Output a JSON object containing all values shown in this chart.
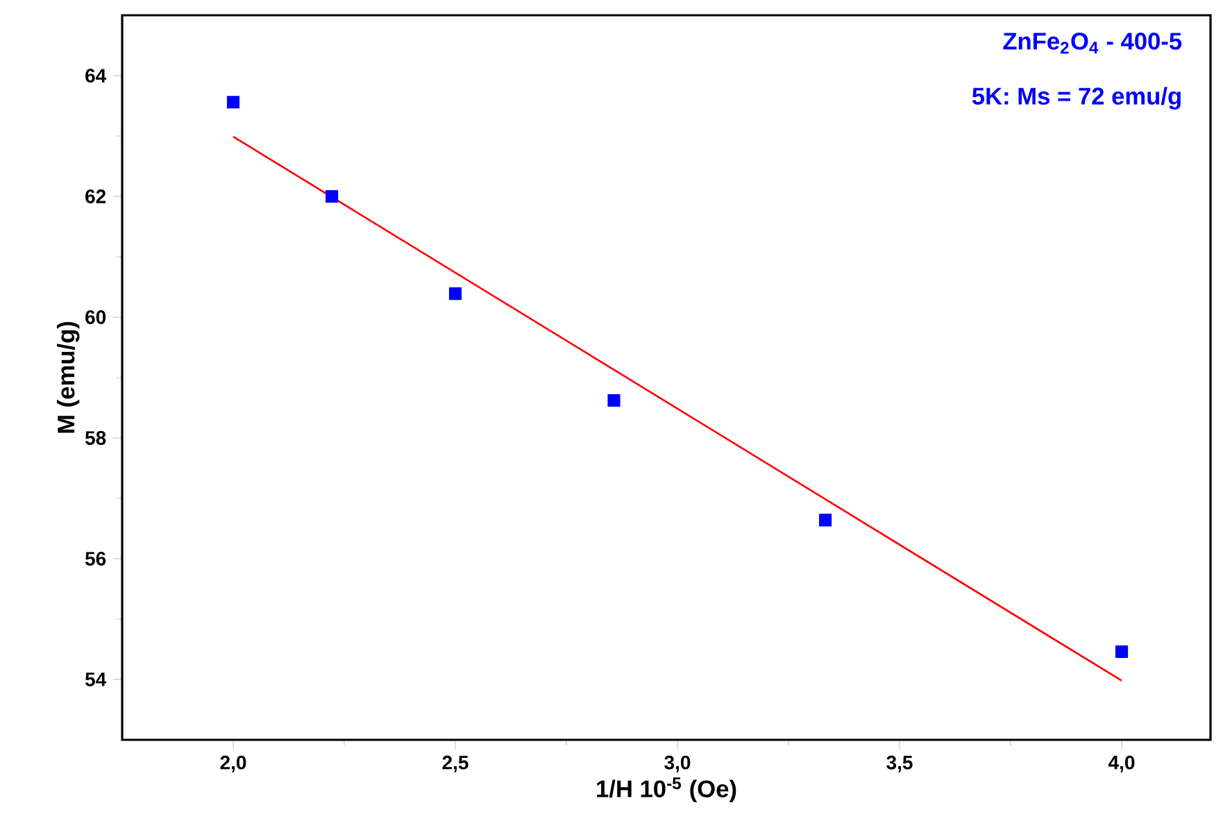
{
  "chart_data": {
    "type": "scatter",
    "xlabel": "1/H 10$^{-5}$ (Oe)",
    "ylabel": "M (emu/g)",
    "annotations": [
      "ZnFe$_{2}$O$_{4}$ - 400-5",
      "5K: Ms = 72 emu/g"
    ],
    "xlim": [
      1.75,
      4.2
    ],
    "ylim": [
      53,
      65
    ],
    "xticks": [
      {
        "value": 2.0,
        "label": "2,0"
      },
      {
        "value": 2.5,
        "label": "2,5"
      },
      {
        "value": 3.0,
        "label": "3,0"
      },
      {
        "value": 3.5,
        "label": "3,5"
      },
      {
        "value": 4.0,
        "label": "4,0"
      }
    ],
    "yticks": [
      54,
      56,
      58,
      60,
      62,
      64
    ],
    "series": [
      {
        "marker": "square",
        "color": "#0000ff",
        "x": [
          2.0,
          2.222,
          2.5,
          2.857,
          3.333,
          4.0
        ],
        "values": [
          63.56,
          62.0,
          60.39,
          58.62,
          56.64,
          54.46
        ]
      },
      {
        "type": "line",
        "marker": "none",
        "color": "#ff0000",
        "x": [
          2.0,
          4.0
        ],
        "values": [
          62.99,
          53.98
        ]
      }
    ]
  }
}
